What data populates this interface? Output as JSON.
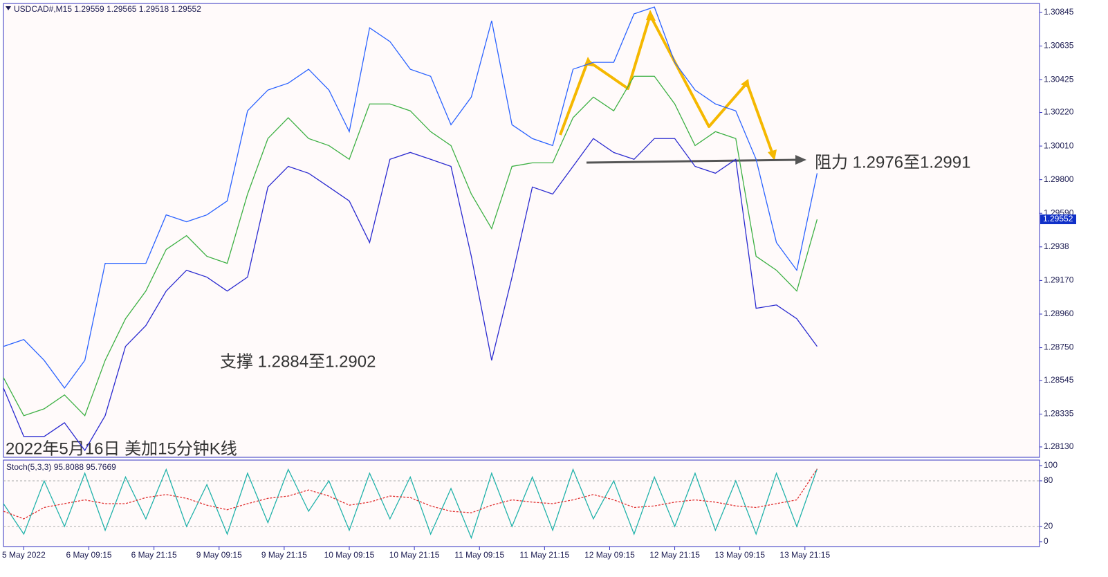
{
  "chart_data": [
    {
      "type": "line",
      "title": "USDCAD#,M15  1.29559 1.29565 1.29518 1.29552",
      "annotations": [
        "阻力 1.2976至1.2991",
        "支撑 1.2884至1.2902",
        "2022年5月16日 美加15分钟K线"
      ],
      "last_price": {
        "value": 1.29552,
        "label": "1.29552"
      },
      "x": [
        0,
        15,
        30,
        45,
        60,
        75,
        90,
        105,
        120,
        135,
        150,
        165,
        180,
        195,
        210,
        225,
        240,
        255,
        270,
        285,
        300,
        315,
        330,
        345,
        360,
        375,
        390,
        405,
        420,
        435,
        450,
        465,
        480,
        495,
        510,
        525,
        540,
        555,
        570,
        585,
        600
      ],
      "xlim": [
        0,
        764
      ],
      "xticks": [
        {
          "value": 15,
          "label": "5 May 2022"
        },
        {
          "value": 63,
          "label": "6 May 09:15"
        },
        {
          "value": 111,
          "label": "6 May 21:15"
        },
        {
          "value": 159,
          "label": "9 May 09:15"
        },
        {
          "value": 207,
          "label": "9 May 21:15"
        },
        {
          "value": 255,
          "label": "10 May 09:15"
        },
        {
          "value": 303,
          "label": "10 May 21:15"
        },
        {
          "value": 351,
          "label": "11 May 09:15"
        },
        {
          "value": 399,
          "label": "11 May 21:15"
        },
        {
          "value": 447,
          "label": "12 May 09:15"
        },
        {
          "value": 495,
          "label": "12 May 21:15"
        },
        {
          "value": 543,
          "label": "13 May 09:15"
        },
        {
          "value": 591,
          "label": "13 May 21:15"
        }
      ],
      "ylim": [
        1.28065,
        1.30901
      ],
      "yticks": [
        1.30845,
        1.30635,
        1.30425,
        {
          "value": 1.3022,
          "label": "1.30220"
        },
        {
          "value": 1.3001,
          "label": "1.30010"
        },
        {
          "value": 1.298,
          "label": "1.29800"
        },
        {
          "value": 1.2959,
          "label": "1.29590"
        },
        1.2938,
        {
          "value": 1.2917,
          "label": "1.29170"
        },
        {
          "value": 1.2896,
          "label": "1.28960"
        },
        {
          "value": 1.2875,
          "label": "1.28750"
        },
        1.28545,
        1.28335,
        {
          "value": 1.2813,
          "label": "1.28130"
        }
      ],
      "series": [
        {
          "color": "#2a62ff",
          "values": [
            1.28758,
            1.28801,
            1.28671,
            1.28498,
            1.28671,
            1.29277,
            1.29277,
            1.29277,
            1.2958,
            1.29537,
            1.2958,
            1.29667,
            1.3023,
            1.3036,
            1.30403,
            1.3049,
            1.3036,
            1.301,
            1.30749,
            1.30663,
            1.3049,
            1.30446,
            1.30143,
            1.30316,
            1.30793,
            1.30143,
            1.30057,
            1.30013,
            1.3049,
            1.30533,
            1.30533,
            1.30836,
            1.30879,
            1.30533,
            1.3036,
            1.30273,
            1.3023,
            1.29927,
            1.29407,
            1.29234,
            1.2984
          ]
        },
        {
          "color": "#3cb043",
          "values": [
            1.28563,
            1.28325,
            1.28368,
            1.28455,
            1.28325,
            1.28671,
            1.28931,
            1.29104,
            1.29364,
            1.2945,
            1.29321,
            1.29277,
            1.2971,
            1.30057,
            1.30187,
            1.30057,
            1.30013,
            1.29927,
            1.30273,
            1.30273,
            1.3023,
            1.301,
            1.30013,
            1.2971,
            1.29494,
            1.29883,
            1.29905,
            1.29905,
            1.30187,
            1.30316,
            1.3023,
            1.30446,
            1.30446,
            1.30273,
            1.30013,
            1.301,
            1.30057,
            1.29321,
            1.29234,
            1.29104,
            1.29552
          ]
        },
        {
          "color": "#2a2ad0",
          "values": [
            1.28498,
            1.28195,
            1.28195,
            1.28281,
            1.28108,
            1.28325,
            1.28758,
            1.28888,
            1.29104,
            1.29234,
            1.29191,
            1.29104,
            1.29191,
            1.29754,
            1.29883,
            1.2984,
            1.29754,
            1.29667,
            1.29407,
            1.29927,
            1.2997,
            1.29927,
            1.29883,
            1.29321,
            1.28671,
            1.29191,
            1.29754,
            1.2971,
            1.29883,
            1.30057,
            1.2997,
            1.29927,
            1.30057,
            1.30057,
            1.29883,
            1.2984,
            1.29927,
            1.28996,
            1.29017,
            1.28931,
            1.28758
          ]
        }
      ]
    },
    {
      "type": "line",
      "title": "Stoch(5,3,3) 95.8088 95.7669",
      "x": [
        0,
        15,
        30,
        45,
        60,
        75,
        90,
        105,
        120,
        135,
        150,
        165,
        180,
        195,
        210,
        225,
        240,
        255,
        270,
        285,
        300,
        315,
        330,
        345,
        360,
        375,
        390,
        405,
        420,
        435,
        450,
        465,
        480,
        495,
        510,
        525,
        540,
        555,
        570,
        585,
        600
      ],
      "xlim": [
        0,
        764
      ],
      "ylim": [
        -6.4,
        107.3
      ],
      "yticks": [
        100,
        80,
        20,
        0
      ],
      "levels": [
        80,
        20
      ],
      "series": [
        {
          "color": "#20b2aa",
          "values": [
            50,
            10,
            80,
            20,
            90,
            15,
            85,
            30,
            95,
            20,
            75,
            10,
            90,
            25,
            95,
            40,
            80,
            15,
            90,
            30,
            85,
            10,
            70,
            5,
            90,
            20,
            85,
            15,
            95,
            30,
            80,
            10,
            85,
            20,
            90,
            15,
            80,
            10,
            90,
            20,
            95.8088
          ]
        },
        {
          "color": "#e03030",
          "dash": true,
          "values": [
            40,
            30,
            45,
            50,
            55,
            50,
            50,
            58,
            62,
            57,
            48,
            42,
            50,
            57,
            60,
            68,
            60,
            48,
            52,
            60,
            58,
            47,
            40,
            38,
            48,
            55,
            52,
            50,
            55,
            62,
            55,
            45,
            47,
            52,
            55,
            52,
            47,
            45,
            50,
            55,
            95.7669
          ]
        }
      ]
    }
  ]
}
